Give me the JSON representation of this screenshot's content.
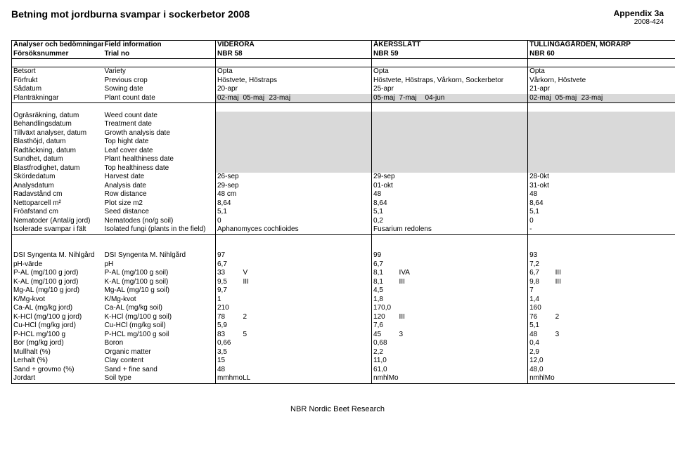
{
  "header": {
    "title": "Betning mot jordburna svampar i sockerbetor 2008",
    "appendix_label": "Appendix 3a",
    "appendix_code": "2008-424"
  },
  "sites": {
    "a": "VIDERÖRA",
    "b": "ÅKERSSLÄTT",
    "c": "TULLINGAGÅRDEN, MÖRARP"
  },
  "hdr": {
    "r1_sv": "Analyser och bedömningar",
    "r1_en": "Field information",
    "r2_sv": "Försöksnummer",
    "r2_en": "Trial no",
    "nbr_a": "NBR 58",
    "nbr_b": "NBR 59",
    "nbr_c": "NBR 60"
  },
  "rows": [
    {
      "sv": "Betsort",
      "en": "Variety",
      "a1": "Opta",
      "b1": "Opta",
      "c1": "Opta"
    },
    {
      "sv": "Förfrukt",
      "en": "Previous crop",
      "a1": "Höstvete, Höstraps",
      "b1": "Höstvete, Höstraps, Vårkorn, Sockerbetor",
      "c1": "Vårkorn, Höstvete"
    },
    {
      "sv": "Sådatum",
      "en": "Sowing date",
      "a1": "20-apr",
      "b1": "25-apr",
      "c1": "21-apr"
    },
    {
      "sv": "Planträkningar",
      "en": "Plant count date",
      "a1": "02-maj",
      "a2": "05-maj",
      "a3": "23-maj",
      "b1": "05-maj",
      "b2": "7-maj",
      "b3": "04-jun",
      "c1": "02-maj",
      "c2": "05-maj",
      "c3": "23-maj",
      "grey": true
    }
  ],
  "block2": [
    {
      "sv": "Ogräsräkning, datum",
      "en": "Weed count date",
      "grey": true
    },
    {
      "sv": "Behandlingsdatum",
      "en": "Treatment date",
      "grey": true
    },
    {
      "sv": "Tillväxt analyser, datum",
      "en": "Growth analysis date",
      "grey": true
    },
    {
      "sv": "Blasthöjd, datum",
      "en": "Top hight date",
      "grey": true
    },
    {
      "sv": "Radtäckning, datum",
      "en": "Leaf cover date",
      "grey": true
    },
    {
      "sv": "Sundhet, datum",
      "en": "Plant healthiness date",
      "grey": true
    },
    {
      "sv": "Blastfrodighet, datum",
      "en": "Top healthiness date",
      "grey": true
    },
    {
      "sv": "Skördedatum",
      "en": "Harvest date",
      "a1": "26-sep",
      "b1": "29-sep",
      "c1": "28-0kt"
    },
    {
      "sv": "Analysdatum",
      "en": "Analysis date",
      "a1": "29-sep",
      "b1": "01-okt",
      "c1": "31-okt"
    },
    {
      "sv": "Radavstånd cm",
      "en": "Row distance",
      "a1": "48 cm",
      "b1": "48",
      "c1": "48"
    },
    {
      "sv": "Nettoparcell m²",
      "en": "Plot size m2",
      "a1": "8,64",
      "b1": "8,64",
      "c1": "8,64"
    },
    {
      "sv": "Fröafstand cm",
      "en": "Seed distance",
      "a1": "5,1",
      "b1": "5,1",
      "c1": "5,1"
    },
    {
      "sv": "Nematoder (Antal/g jord)",
      "en": "Nematodes (no/g soil)",
      "a1": "0",
      "b1": "0,2",
      "c1": "0"
    },
    {
      "sv": "Isolerade svampar i fält",
      "en": "Isolated fungi (plants in the field)",
      "a1": "Aphanomyces cochlioides",
      "b1": "Fusarium redolens",
      "c1": "-"
    }
  ],
  "block3": [
    {
      "sv": "DSI Syngenta M. Nihlgård",
      "en": "DSI Syngenta M. Nihlgård",
      "a1": "97",
      "b1": "99",
      "c1": "93"
    },
    {
      "sv": "pH-värde",
      "en": "pH",
      "a1": "6,7",
      "b1": "6,7",
      "c1": "7,2"
    },
    {
      "sv": "P-AL  (mg/100 g jord)",
      "en": "P-AL (mg/100 g soil)",
      "a1": "33",
      "a2": "V",
      "b1": "8,1",
      "b2": "IVA",
      "c1": "6,7",
      "c2": "III"
    },
    {
      "sv": "K-AL  (mg/100 g jord)",
      "en": "K-AL (mg/100 g soil)",
      "a1": "9,5",
      "a2": "III",
      "b1": "8,1",
      "b2": "III",
      "c1": "9,8",
      "c2": "III"
    },
    {
      "sv": "Mg-AL (mg/10 g jord)",
      "en": "Mg-AL (mg/10 g soil)",
      "a1": "9,7",
      "b1": "4,5",
      "c1": "7"
    },
    {
      "sv": "K/Mg-kvot",
      "en": "K/Mg-kvot",
      "a1": "1",
      "b1": "1,8",
      "c1": "1,4"
    },
    {
      "sv": "Ca-AL (mg/kg jord)",
      "en": "Ca-AL (mg/kg soil)",
      "a1": "210",
      "b1": "170,0",
      "c1": "160"
    },
    {
      "sv": "K-HCl  (mg/100 g jord)",
      "en": "K-HCl (mg/100 g soil)",
      "a1": "78",
      "a2": "2",
      "b1": "120",
      "b2": "III",
      "c1": "76",
      "c2": "2"
    },
    {
      "sv": "Cu-HCl (mg/kg jord)",
      "en": "Cu-HCl (mg/kg soil)",
      "a1": "5,9",
      "b1": "7,6",
      "c1": "5,1"
    },
    {
      "sv": "P-HCL mg/100 g",
      "en": "P-HCL mg/100 g soil",
      "a1": "83",
      "a2": "5",
      "b1": "45",
      "b2": "3",
      "c1": "48",
      "c2": "3"
    },
    {
      "sv": "Bor  (mg/kg jord)",
      "en": "Boron",
      "a1": "0,66",
      "b1": "0,68",
      "c1": "0,4"
    },
    {
      "sv": "Mullhalt (%)",
      "en": "Organic matter",
      "a1": "3,5",
      "b1": "2,2",
      "c1": "2,9"
    },
    {
      "sv": "Lerhalt  (%)",
      "en": "Clay content",
      "a1": "15",
      "b1": "11,0",
      "c1": "12,0"
    },
    {
      "sv": "Sand + grovmo (%)",
      "en": "Sand + fine sand",
      "a1": "48",
      "b1": "61,0",
      "c1": "48,0"
    },
    {
      "sv": "Jordart",
      "en": "Soil type",
      "a1": "mmhmoLL",
      "b1": "nmhlMo",
      "c1": "nmhlMo"
    }
  ],
  "footer": "NBR Nordic Beet Research"
}
